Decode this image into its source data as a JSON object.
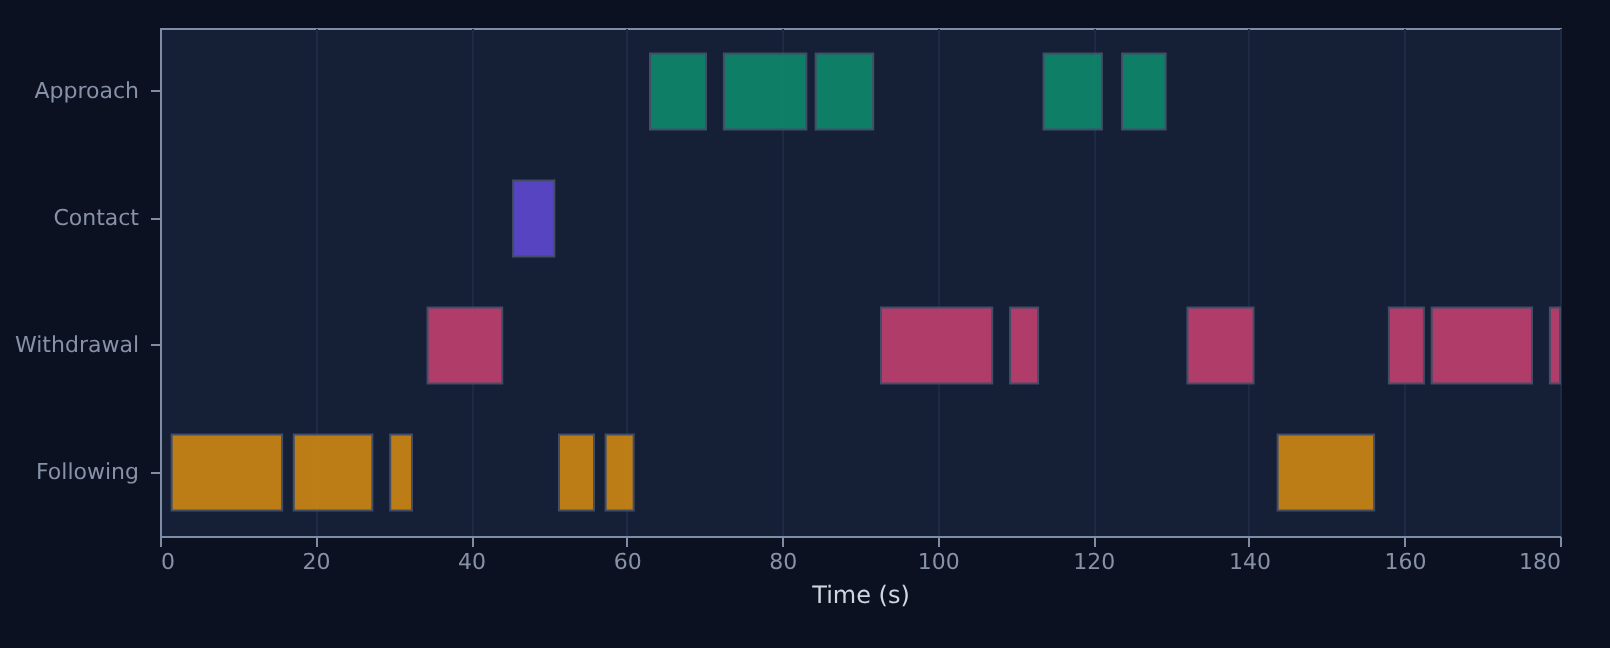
{
  "chart_data": {
    "type": "bar",
    "orientation": "horizontal",
    "xlabel": "Time (s)",
    "categories": [
      "Approach",
      "Contact",
      "Withdrawal",
      "Following"
    ],
    "xlim": [
      0,
      180
    ],
    "xticks": [
      0,
      20,
      40,
      60,
      80,
      100,
      120,
      140,
      160,
      180
    ],
    "grid": "x",
    "series": [
      {
        "values": [
          7.2,
          5.3,
          9.6,
          14.2
        ],
        "base": [
          63.0,
          45.4,
          34.4,
          1.5
        ],
        "colors": [
          "#0f846a",
          "#5b46c9",
          "#b83e6c",
          "#c68315"
        ]
      },
      {
        "values": [
          10.6,
          null,
          14.3,
          10.1
        ],
        "base": [
          72.5,
          null,
          92.7,
          17.2
        ],
        "colors": [
          "#0f846a",
          null,
          "#b83e6c",
          "#c68315"
        ]
      },
      {
        "values": [
          7.4,
          null,
          3.6,
          2.8
        ],
        "base": [
          84.3,
          null,
          109.3,
          29.6
        ],
        "colors": [
          "#0f846a",
          null,
          "#b83e6c",
          "#c68315"
        ]
      },
      {
        "values": [
          7.5,
          null,
          8.5,
          4.5
        ],
        "base": [
          113.6,
          null,
          132.1,
          51.3
        ],
        "colors": [
          "#0f846a",
          null,
          "#b83e6c",
          "#c68315"
        ]
      },
      {
        "values": [
          5.6,
          null,
          4.5,
          3.6
        ],
        "base": [
          123.7,
          null,
          158.0,
          57.3
        ],
        "colors": [
          "#0f846a",
          null,
          "#b83e6c",
          "#c68315"
        ]
      },
      {
        "values": [
          null,
          null,
          12.9,
          12.4
        ],
        "base": [
          null,
          null,
          163.5,
          143.7
        ],
        "colors": [
          null,
          null,
          "#b83e6c",
          "#c68315"
        ]
      },
      {
        "values": [
          null,
          null,
          1.3,
          null
        ],
        "base": [
          null,
          null,
          178.7,
          null
        ],
        "colors": [
          null,
          null,
          "#b83e6c",
          null
        ]
      }
    ]
  }
}
